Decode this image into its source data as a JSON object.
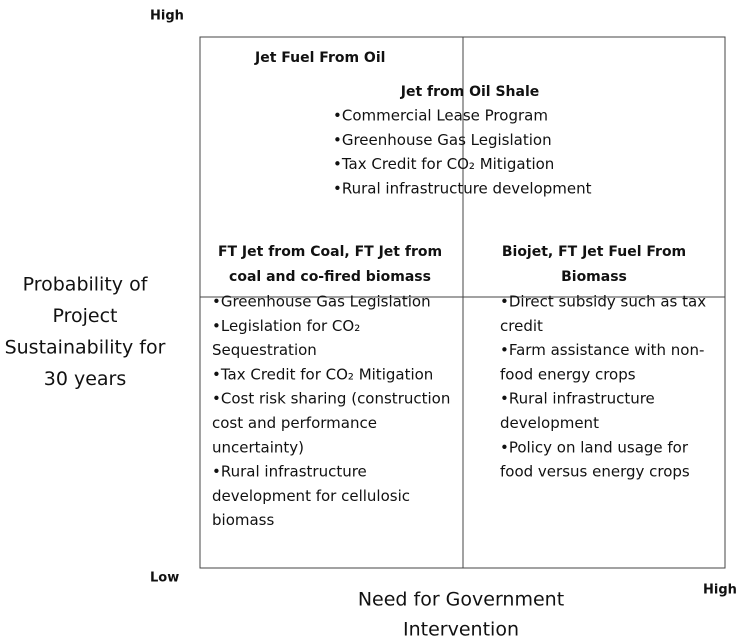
{
  "axis": {
    "y_high": "High",
    "y_low": "Low",
    "x_high": "High",
    "y_label": [
      "Probability of",
      "Project",
      "Sustainability for",
      "30 years"
    ],
    "x_label": [
      "Need for Government",
      "Intervention"
    ]
  },
  "quadrants": {
    "top_left_title": "Jet Fuel From Oil",
    "top": {
      "title": [
        "Jet from Oil Shale"
      ],
      "lines": [
        "•Commercial Lease Program",
        "•Greenhouse Gas Legislation",
        "•Tax Credit for CO₂ Mitigation",
        "•Rural infrastructure development"
      ]
    },
    "bottom_left": {
      "title": [
        "FT Jet from Coal, FT Jet from",
        "coal and co-fired biomass"
      ],
      "lines": [
        "•Greenhouse Gas Legislation",
        "•Legislation for CO₂",
        "Sequestration",
        "•Tax Credit for CO₂ Mitigation",
        "•Cost risk sharing (construction",
        "cost and performance",
        "uncertainty)",
        "•Rural infrastructure",
        "development for cellulosic",
        "biomass"
      ]
    },
    "bottom_right": {
      "title": [
        "Biojet, FT Jet Fuel From",
        "Biomass"
      ],
      "lines": [
        "•Direct subsidy such as tax",
        "credit",
        "•Farm assistance with non-",
        "food energy crops",
        "•Rural infrastructure",
        "development",
        "•Policy on land usage for",
        "food versus energy crops"
      ]
    }
  }
}
